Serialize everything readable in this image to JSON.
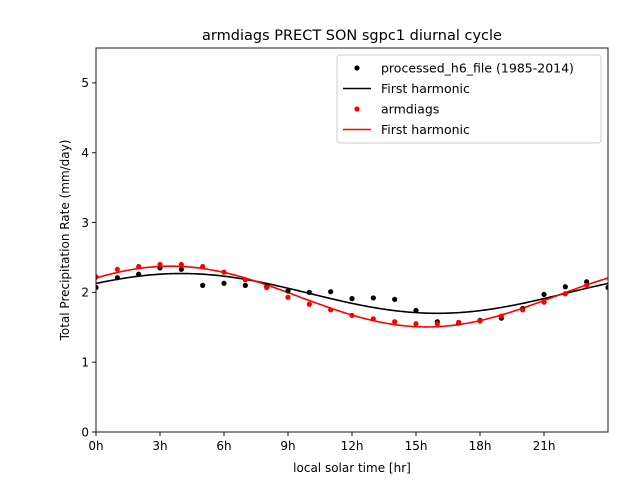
{
  "chart_data": {
    "type": "scatter",
    "title": "armdiags PRECT SON sgpc1 diurnal cycle",
    "xlabel": "local solar time [hr]",
    "ylabel": "Total Precipitation Rate (mm/day)",
    "xlim": [
      0,
      24
    ],
    "ylim": [
      0,
      5.5
    ],
    "x_ticks": [
      0,
      3,
      6,
      9,
      12,
      15,
      18,
      21
    ],
    "x_tick_labels": [
      "0h",
      "3h",
      "6h",
      "9h",
      "12h",
      "15h",
      "18h",
      "21h"
    ],
    "y_ticks": [
      0,
      1,
      2,
      3,
      4,
      5
    ],
    "y_tick_labels": [
      "0",
      "1",
      "2",
      "3",
      "4",
      "5"
    ],
    "legend_position": "top-right",
    "series": [
      {
        "name": "processed_h6_file (1985-2014)",
        "kind": "points",
        "color": "#000000",
        "x": [
          0,
          1,
          2,
          3,
          4,
          5,
          6,
          7,
          8,
          9,
          10,
          11,
          12,
          13,
          14,
          15,
          16,
          17,
          18,
          19,
          20,
          21,
          22,
          23,
          24
        ],
        "values": [
          2.07,
          2.21,
          2.26,
          2.35,
          2.33,
          2.1,
          2.13,
          2.1,
          2.08,
          2.02,
          2.0,
          2.01,
          1.91,
          1.92,
          1.9,
          1.74,
          1.58,
          1.56,
          1.6,
          1.63,
          1.77,
          1.97,
          2.08,
          2.15,
          2.07
        ]
      },
      {
        "name": "First harmonic",
        "kind": "line",
        "color": "#000000",
        "harmonic": {
          "mean": 1.985,
          "amplitude": 0.285,
          "peak_hour": 4.0
        }
      },
      {
        "name": "armdiags",
        "kind": "points",
        "color": "#ff0000",
        "x": [
          0,
          1,
          2,
          3,
          4,
          5,
          6,
          7,
          8,
          9,
          10,
          11,
          12,
          13,
          14,
          15,
          16,
          17,
          18,
          19,
          20,
          21,
          22,
          23
        ],
        "values": [
          2.22,
          2.33,
          2.37,
          2.4,
          2.4,
          2.37,
          2.29,
          2.18,
          2.07,
          1.93,
          1.83,
          1.75,
          1.67,
          1.62,
          1.58,
          1.55,
          1.55,
          1.57,
          1.59,
          1.66,
          1.75,
          1.86,
          1.98,
          2.1
        ]
      },
      {
        "name": "First harmonic",
        "kind": "line",
        "color": "#ff0000",
        "harmonic": {
          "mean": 1.94,
          "amplitude": 0.435,
          "peak_hour": 3.5
        }
      }
    ]
  }
}
